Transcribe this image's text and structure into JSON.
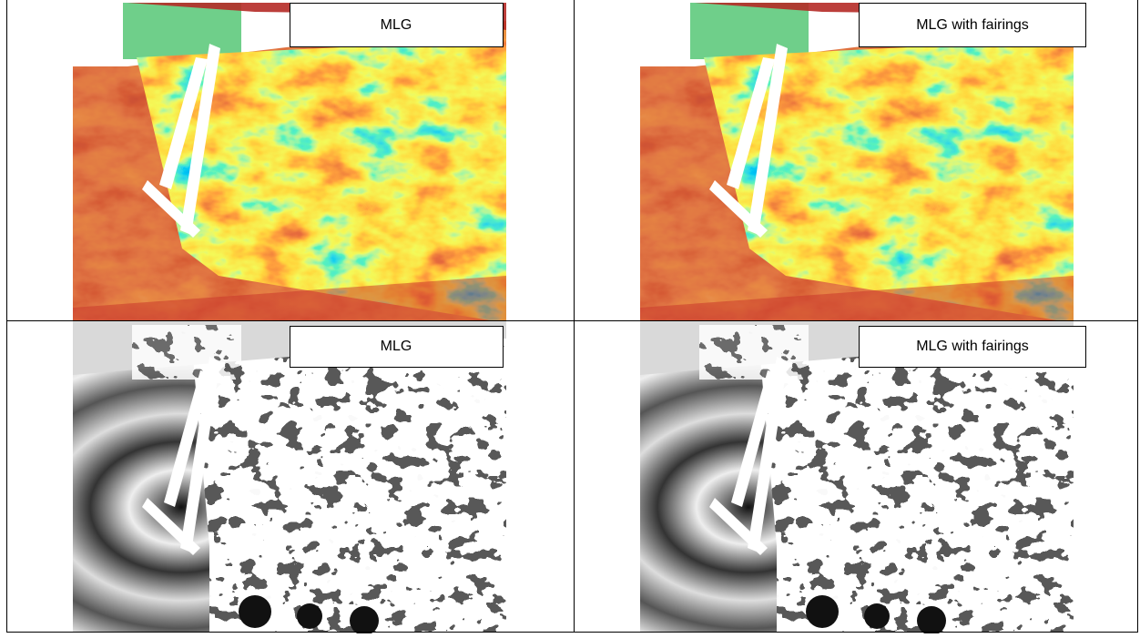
{
  "table": {
    "rows": [
      [
        {
          "label": "MLG"
        },
        {
          "label": "MLG with fairings"
        }
      ],
      [
        {
          "label": "MLG"
        },
        {
          "label": "MLG with fairings"
        }
      ]
    ]
  }
}
